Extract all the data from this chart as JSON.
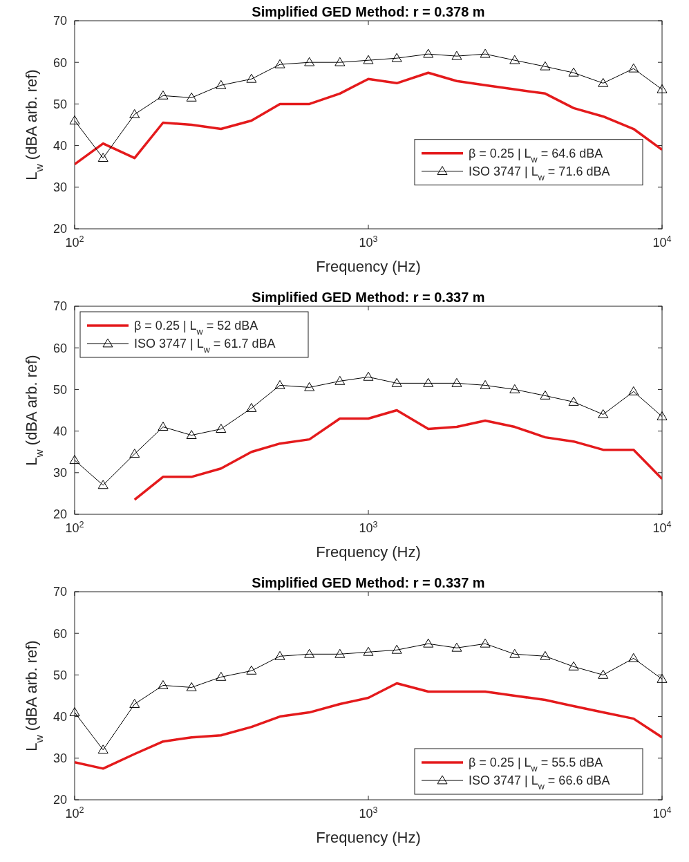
{
  "chart_data": [
    {
      "type": "line",
      "title": "Simplified GED Method: r = 0.378 m",
      "xlabel": "Frequency (Hz)",
      "ylabel": "L$_{w}$ (dBA arb. ref)",
      "log": "x",
      "xlim": [
        100,
        10000
      ],
      "xticks": [
        {
          "value": 100,
          "label": "10$^{2}$"
        },
        {
          "value": 1000,
          "label": "10$^{3}$"
        },
        {
          "value": 10000,
          "label": "10$^{4}$"
        }
      ],
      "ylim": [
        20,
        70
      ],
      "yticks": [
        20,
        30,
        40,
        50,
        60,
        70
      ],
      "legend": "right",
      "x": [
        100,
        125,
        160,
        200,
        250,
        315,
        400,
        500,
        630,
        800,
        1000,
        1250,
        1600,
        2000,
        2500,
        3150,
        4000,
        5000,
        6300,
        8000,
        10000
      ],
      "series": [
        {
          "name": "β = 0.25 | L$_{w}$ = 64.6 dBA",
          "color": "#e41a1c",
          "marker": "none",
          "values": [
            35.5,
            40.5,
            37,
            45.5,
            45,
            44,
            46,
            50,
            50,
            52.5,
            56,
            55,
            57.5,
            55.5,
            54.5,
            53.5,
            52.5,
            49,
            47,
            44,
            39
          ]
        },
        {
          "name": "ISO 3747 | L$_{w}$ = 71.6 dBA",
          "color": "#000000",
          "marker": "triangle",
          "values": [
            46,
            37,
            47.5,
            52,
            51.5,
            54.5,
            56,
            59.5,
            60,
            60,
            60.5,
            61,
            62,
            61.5,
            62,
            60.5,
            59,
            57.5,
            55,
            58.5,
            53.5
          ]
        }
      ]
    },
    {
      "type": "line",
      "title": "Simplified GED Method: r = 0.337 m",
      "xlabel": "Frequency (Hz)",
      "ylabel": "L$_{w}$ (dBA arb. ref)",
      "log": "x",
      "xlim": [
        100,
        10000
      ],
      "xticks": [
        {
          "value": 100,
          "label": "10$^{2}$"
        },
        {
          "value": 1000,
          "label": "10$^{3}$"
        },
        {
          "value": 10000,
          "label": "10$^{4}$"
        }
      ],
      "ylim": [
        20,
        70
      ],
      "yticks": [
        20,
        30,
        40,
        50,
        60,
        70
      ],
      "legend": "top left",
      "x": [
        100,
        125,
        160,
        200,
        250,
        315,
        400,
        500,
        630,
        800,
        1000,
        1250,
        1600,
        2000,
        2500,
        3150,
        4000,
        5000,
        6300,
        8000,
        10000
      ],
      "series": [
        {
          "name": "β = 0.25 | L$_{w}$ = 52 dBA",
          "color": "#e41a1c",
          "marker": "none",
          "values": [
            null,
            null,
            23.5,
            29,
            29,
            31,
            35,
            37,
            38,
            43,
            43,
            45,
            40.5,
            41,
            42.5,
            41,
            38.5,
            37.5,
            35.5,
            35.5,
            28.5
          ]
        },
        {
          "name": "ISO 3747 | L$_{w}$ = 61.7 dBA",
          "color": "#000000",
          "marker": "triangle",
          "values": [
            33,
            27,
            34.5,
            41,
            39,
            40.5,
            45.5,
            51,
            50.5,
            52,
            53,
            51.5,
            51.5,
            51.5,
            51,
            50,
            48.5,
            47,
            44,
            49.5,
            43.5
          ]
        }
      ]
    },
    {
      "type": "line",
      "title": "Simplified GED Method: r = 0.337 m",
      "xlabel": "Frequency (Hz)",
      "ylabel": "L$_{w}$ (dBA arb. ref)",
      "log": "x",
      "xlim": [
        100,
        10000
      ],
      "xticks": [
        {
          "value": 100,
          "label": "10$^{2}$"
        },
        {
          "value": 1000,
          "label": "10$^{3}$"
        },
        {
          "value": 10000,
          "label": "10$^{4}$"
        }
      ],
      "ylim": [
        20,
        70
      ],
      "yticks": [
        20,
        30,
        40,
        50,
        60,
        70
      ],
      "legend": "bottom right",
      "x": [
        100,
        125,
        160,
        200,
        250,
        315,
        400,
        500,
        630,
        800,
        1000,
        1250,
        1600,
        2000,
        2500,
        3150,
        4000,
        5000,
        6300,
        8000,
        10000
      ],
      "series": [
        {
          "name": "β = 0.25 | L$_{w}$ = 55.5 dBA",
          "color": "#e41a1c",
          "marker": "none",
          "values": [
            29,
            27.5,
            31,
            34,
            35,
            35.5,
            37.5,
            40,
            41,
            43,
            44.5,
            48,
            46,
            46,
            46,
            45,
            44,
            42.5,
            41,
            39.5,
            35
          ]
        },
        {
          "name": "ISO 3747 | L$_{w}$ = 66.6 dBA",
          "color": "#000000",
          "marker": "triangle",
          "values": [
            41,
            32,
            43,
            47.5,
            47,
            49.5,
            51,
            54.5,
            55,
            55,
            55.5,
            56,
            57.5,
            56.5,
            57.5,
            55,
            54.5,
            52,
            50,
            54,
            49
          ]
        }
      ]
    }
  ]
}
